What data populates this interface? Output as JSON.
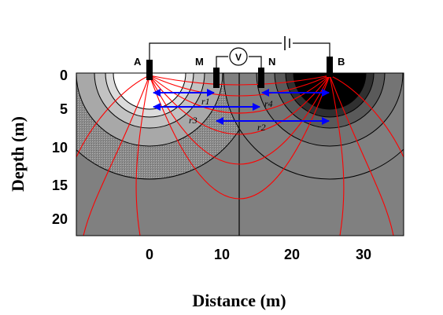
{
  "figure": {
    "xlabel": "Distance (m)",
    "ylabel": "Depth (m)",
    "x_ticks": [
      "0",
      "10",
      "20",
      "30"
    ],
    "y_ticks": [
      "0",
      "5",
      "10",
      "15",
      "20"
    ]
  },
  "electrodes": {
    "a": "A",
    "m": "M",
    "n": "N",
    "b": "B",
    "voltmeter": "V"
  },
  "distances": {
    "r1": "r1",
    "r2": "r2",
    "r3": "r3",
    "r4": "r4"
  },
  "colors": {
    "background": "#808080",
    "current_lines": "#ff0000",
    "distance_arrows": "#0000ff",
    "contours": "#000000"
  }
}
